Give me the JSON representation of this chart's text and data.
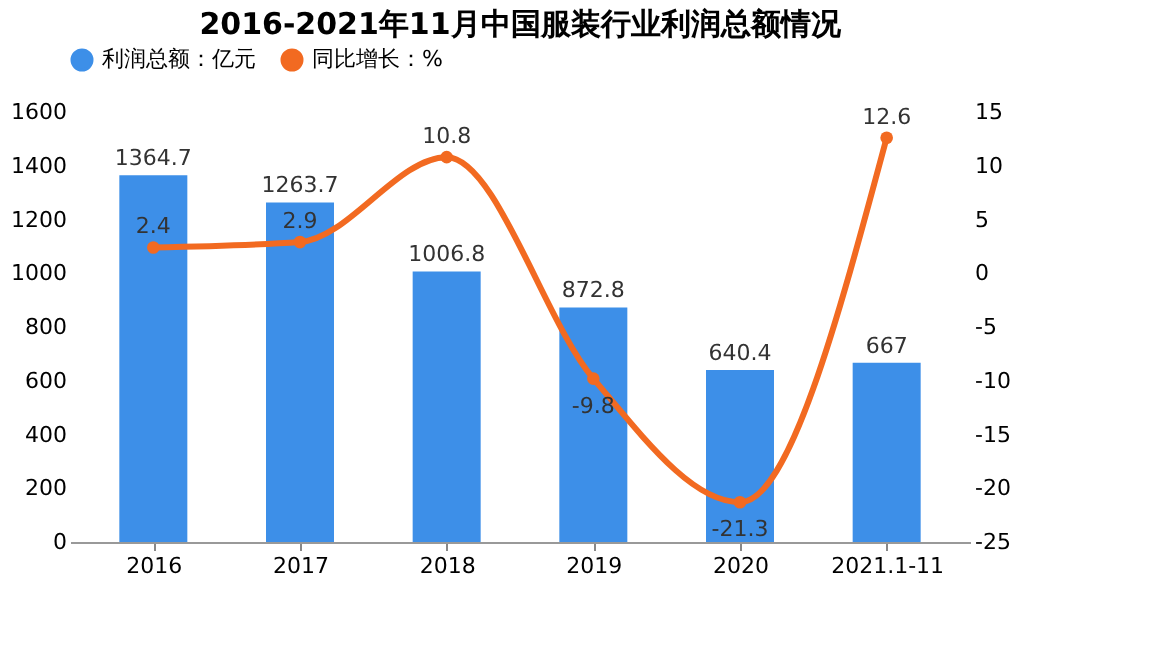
{
  "chart_data": {
    "type": "bar",
    "title": "2016-2021年11月中国服装行业利润总额情况",
    "categories": [
      "2016",
      "2017",
      "2018",
      "2019",
      "2020",
      "2021.1-11"
    ],
    "series": [
      {
        "name": "利润总额：亿元",
        "color": "#3d8fe8",
        "values": [
          1364.7,
          1263.7,
          1006.8,
          872.8,
          640.4,
          667
        ]
      },
      {
        "name": "同比增长：%",
        "color": "#f26a21",
        "type": "line",
        "axis": "y2",
        "values": [
          2.4,
          2.9,
          10.8,
          -9.8,
          -21.3,
          12.6
        ]
      }
    ],
    "ylim": [
      0,
      1600
    ],
    "yticks": [
      0,
      200,
      400,
      600,
      800,
      1000,
      1200,
      1400,
      1600
    ],
    "y2lim": [
      -25,
      15
    ],
    "y2ticks": [
      -25,
      -20,
      -15,
      -10,
      -5,
      0,
      5,
      10,
      15
    ],
    "data_labels": true,
    "legend": "top",
    "marker": "circle",
    "grid": false
  }
}
